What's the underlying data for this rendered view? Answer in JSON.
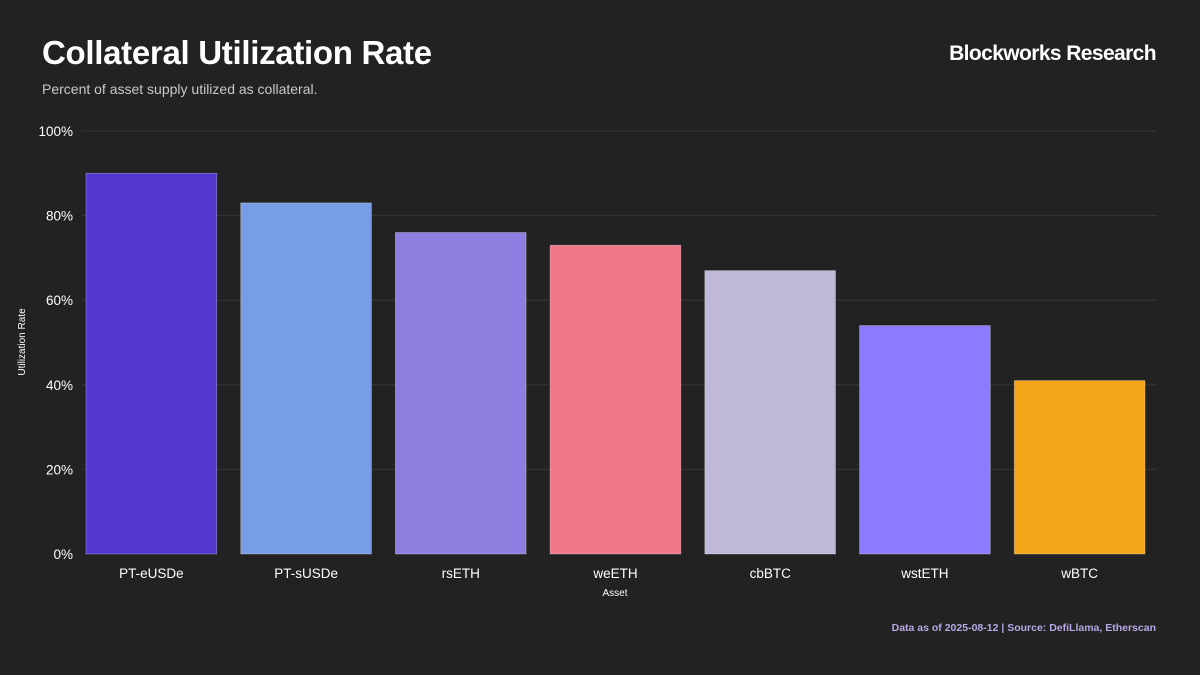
{
  "header": {
    "title": "Collateral Utilization Rate",
    "subtitle": "Percent of asset supply utilized as collateral.",
    "brand": "Blockworks Research"
  },
  "footer": {
    "source": "Data as of 2025-08-12 | Source: DefiLlama, Etherscan"
  },
  "chart_data": {
    "type": "bar",
    "title": "Collateral Utilization Rate",
    "subtitle": "Percent of asset supply utilized as collateral.",
    "xlabel": "Asset",
    "ylabel": "Utilization Rate",
    "categories": [
      "PT-eUSDe",
      "PT-sUSDe",
      "rsETH",
      "weETH",
      "cbBTC",
      "wstETH",
      "wBTC"
    ],
    "values": [
      90,
      83,
      76,
      73,
      67,
      54,
      41
    ],
    "colors": [
      "#5537cf",
      "#779de6",
      "#8f7ee0",
      "#f0788a",
      "#c0b8d9",
      "#8b7bfe",
      "#f3a617"
    ],
    "ylim": [
      0,
      100
    ],
    "yticks": [
      0,
      20,
      40,
      60,
      80,
      100
    ],
    "ytick_labels": [
      "0%",
      "20%",
      "40%",
      "60%",
      "80%",
      "100%"
    ],
    "grid": true,
    "legend": "none"
  }
}
